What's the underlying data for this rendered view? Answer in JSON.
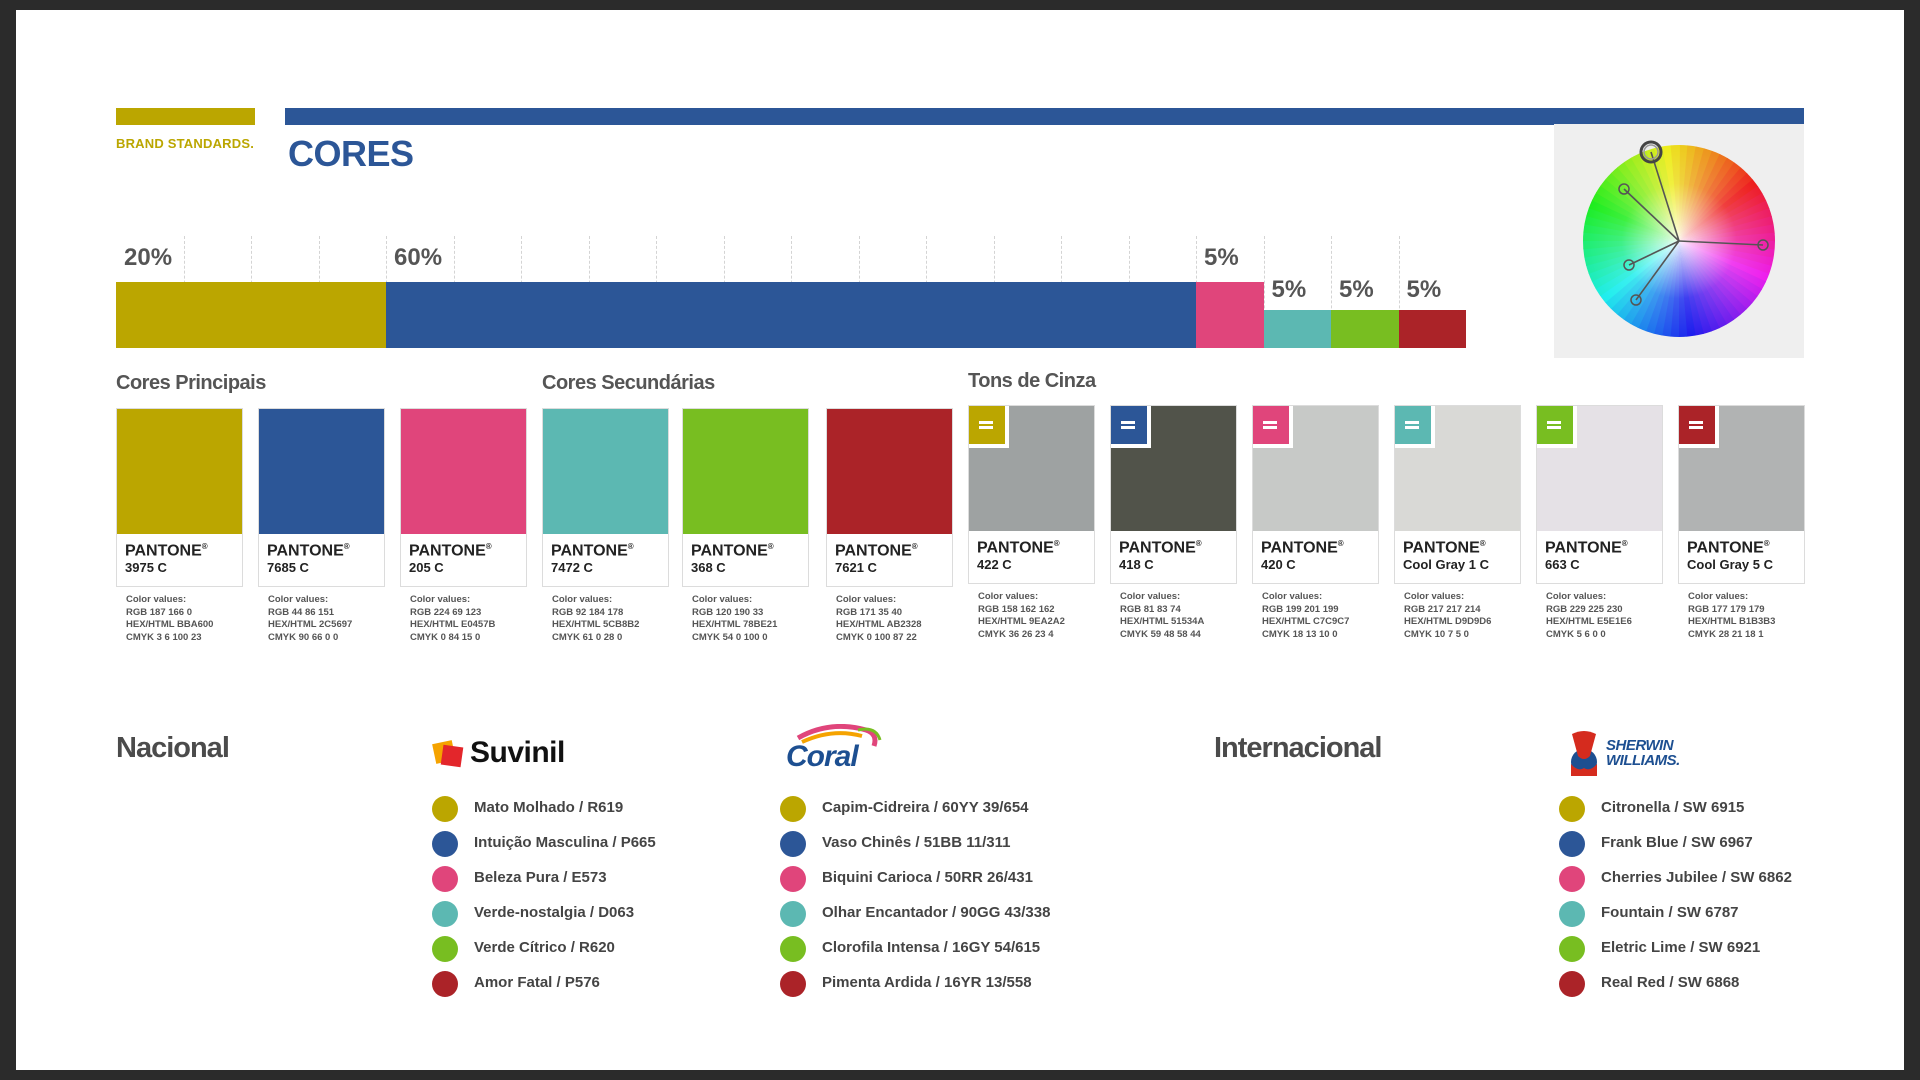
{
  "colors": {
    "gold": "#BBA600",
    "blue": "#2C5697",
    "pink": "#E0457B",
    "teal": "#5CB8B2",
    "green": "#78BE21",
    "red": "#AB2328",
    "gray422": "#9EA2A2",
    "gray418": "#51534A",
    "gray420": "#C7C9C7",
    "coolgray1": "#D9D9D6",
    "gray663": "#E5E1E6",
    "coolgray5": "#B1B3B3"
  },
  "header": {
    "brand_standards": "BRAND STANDARDS.",
    "title": "CORES"
  },
  "proportions": [
    {
      "label": "20%",
      "color": "#BBA600",
      "value": 20
    },
    {
      "label": "60%",
      "color": "#2C5697",
      "value": 60
    },
    {
      "label": "5%",
      "color": "#E0457B",
      "value": 5
    },
    {
      "label": "5%",
      "color": "#5CB8B2",
      "value": 5
    },
    {
      "label": "5%",
      "color": "#78BE21",
      "value": 5
    },
    {
      "label": "5%",
      "color": "#AB2328",
      "value": 5
    }
  ],
  "sections": {
    "principais": "Cores Principais",
    "secundarias": "Cores Secundárias",
    "cinza": "Tons de Cinza"
  },
  "swatches": [
    {
      "pantone": "PANTONE",
      "reg": "®",
      "code": "3975 C",
      "color": "#BBA600",
      "cv_title": "Color values:",
      "rgb": "RGB 187 166 0",
      "hex": "HEX/HTML BBA600",
      "cmyk": "CMYK 3 6 100 23"
    },
    {
      "pantone": "PANTONE",
      "reg": "®",
      "code": "7685 C",
      "color": "#2C5697",
      "cv_title": "Color values:",
      "rgb": "RGB 44 86 151",
      "hex": "HEX/HTML 2C5697",
      "cmyk": "CMYK 90 66 0 0"
    },
    {
      "pantone": "PANTONE",
      "reg": "®",
      "code": "205 C",
      "color": "#E0457B",
      "cv_title": "Color values:",
      "rgb": "RGB 224 69 123",
      "hex": "HEX/HTML E0457B",
      "cmyk": "CMYK 0 84 15 0"
    },
    {
      "pantone": "PANTONE",
      "reg": "®",
      "code": "7472 C",
      "color": "#5CB8B2",
      "cv_title": "Color values:",
      "rgb": "RGB 92 184 178",
      "hex": "HEX/HTML 5CB8B2",
      "cmyk": "CMYK 61 0 28 0"
    },
    {
      "pantone": "PANTONE",
      "reg": "®",
      "code": "368 C",
      "color": "#78BE21",
      "cv_title": "Color values:",
      "rgb": "RGB 120 190 33",
      "hex": "HEX/HTML 78BE21",
      "cmyk": "CMYK 54 0 100 0"
    },
    {
      "pantone": "PANTONE",
      "reg": "®",
      "code": "7621 C",
      "color": "#AB2328",
      "cv_title": "Color values:",
      "rgb": "RGB 171 35 40",
      "hex": "HEX/HTML AB2328",
      "cmyk": "CMYK 0 100 87 22"
    }
  ],
  "grays": [
    {
      "pantone": "PANTONE",
      "reg": "®",
      "code": "422 C",
      "color": "#9EA2A2",
      "tag": "#BBA600",
      "cv_title": "Color values:",
      "rgb": "RGB 158 162 162",
      "hex": "HEX/HTML 9EA2A2",
      "cmyk": "CMYK 36 26 23 4"
    },
    {
      "pantone": "PANTONE",
      "reg": "®",
      "code": "418 C",
      "color": "#51534A",
      "tag": "#2C5697",
      "cv_title": "Color values:",
      "rgb": "RGB 81 83 74",
      "hex": "HEX/HTML 51534A",
      "cmyk": "CMYK 59 48 58 44"
    },
    {
      "pantone": "PANTONE",
      "reg": "®",
      "code": "420 C",
      "color": "#C7C9C7",
      "tag": "#E0457B",
      "cv_title": "Color values:",
      "rgb": "RGB 199 201 199",
      "hex": "HEX/HTML C7C9C7",
      "cmyk": "CMYK 18 13 10 0"
    },
    {
      "pantone": "PANTONE",
      "reg": "®",
      "code": "Cool Gray 1 C",
      "color": "#D9D9D6",
      "tag": "#5CB8B2",
      "cv_title": "Color values:",
      "rgb": "RGB 217 217 214",
      "hex": "HEX/HTML D9D9D6",
      "cmyk": "CMYK 10 7 5 0"
    },
    {
      "pantone": "PANTONE",
      "reg": "®",
      "code": "663 C",
      "color": "#E5E1E6",
      "tag": "#78BE21",
      "cv_title": "Color values:",
      "rgb": "RGB 229 225 230",
      "hex": "HEX/HTML E5E1E6",
      "cmyk": "CMYK 5 6 0 0"
    },
    {
      "pantone": "PANTONE",
      "reg": "®",
      "code": "Cool Gray 5 C",
      "color": "#B1B3B3",
      "tag": "#AB2328",
      "cv_title": "Color values:",
      "rgb": "RGB 177 179 179",
      "hex": "HEX/HTML B1B3B3",
      "cmyk": "CMYK 28 21 18 1"
    }
  ],
  "regions": {
    "nacional": "Nacional",
    "internacional": "Internacional"
  },
  "brands": {
    "suvinil": {
      "logo": "Suvinil",
      "items": [
        {
          "text": "Mato Molhado / R619",
          "color": "#BBA600"
        },
        {
          "text": "Intuição Masculina / P665",
          "color": "#2C5697"
        },
        {
          "text": "Beleza Pura / E573",
          "color": "#E0457B"
        },
        {
          "text": "Verde-nostalgia / D063",
          "color": "#5CB8B2"
        },
        {
          "text": "Verde Cítrico / R620",
          "color": "#78BE21"
        },
        {
          "text": "Amor Fatal / P576",
          "color": "#AB2328"
        }
      ]
    },
    "coral": {
      "logo": "Coral",
      "items": [
        {
          "text": "Capim-Cidreira / 60YY 39/654",
          "color": "#BBA600"
        },
        {
          "text": "Vaso Chinês / 51BB 11/311",
          "color": "#2C5697"
        },
        {
          "text": "Biquini Carioca / 50RR 26/431",
          "color": "#E0457B"
        },
        {
          "text": "Olhar Encantador / 90GG 43/338",
          "color": "#5CB8B2"
        },
        {
          "text": "Clorofila Intensa / 16GY 54/615",
          "color": "#78BE21"
        },
        {
          "text": "Pimenta Ardida / 16YR 13/558",
          "color": "#AB2328"
        }
      ]
    },
    "sherwin": {
      "logo_line1": "SHERWIN",
      "logo_line2": "WILLIAMS.",
      "items": [
        {
          "text": "Citronella / SW 6915",
          "color": "#BBA600"
        },
        {
          "text": "Frank Blue / SW 6967",
          "color": "#2C5697"
        },
        {
          "text": "Cherries Jubilee / SW 6862",
          "color": "#E0457B"
        },
        {
          "text": "Fountain / SW 6787",
          "color": "#5CB8B2"
        },
        {
          "text": "Eletric Lime / SW 6921",
          "color": "#78BE21"
        },
        {
          "text": "Real Red / SW 6868",
          "color": "#AB2328"
        }
      ]
    }
  },
  "wheel": {
    "icon": "color-wheel-icon"
  }
}
